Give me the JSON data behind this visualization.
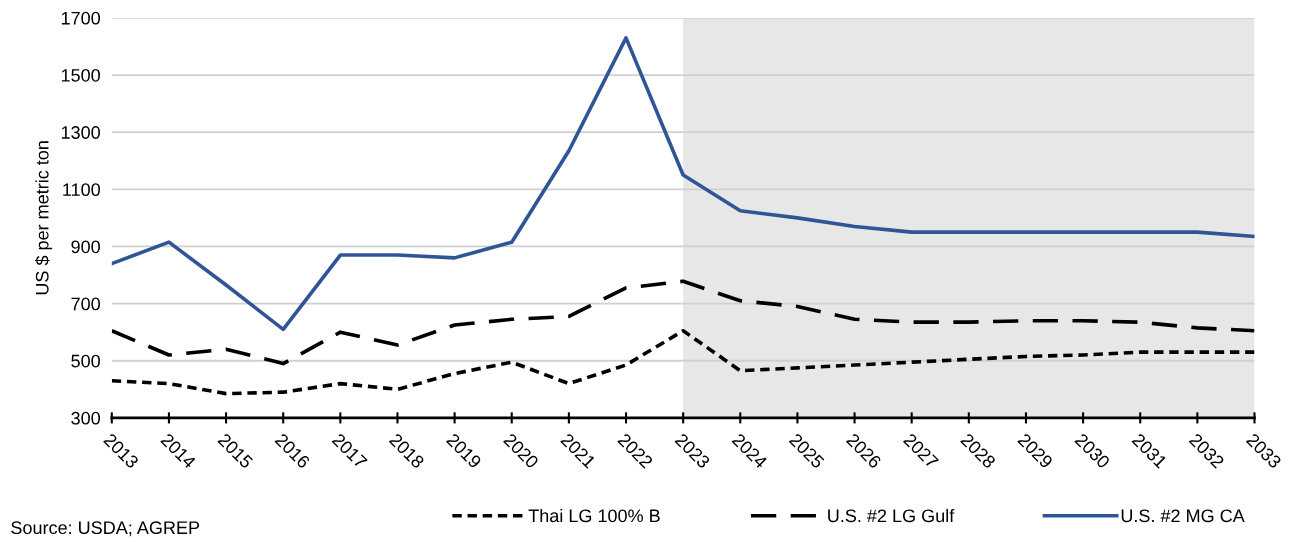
{
  "chart_data": {
    "type": "line",
    "categories": [
      "2013",
      "2014",
      "2015",
      "2016",
      "2017",
      "2018",
      "2019",
      "2020",
      "2021",
      "2022",
      "2023",
      "2024",
      "2025",
      "2026",
      "2027",
      "2028",
      "2029",
      "2030",
      "2031",
      "2032",
      "2033"
    ],
    "series": [
      {
        "name": "Thai LG 100% B",
        "color": "#000000",
        "line_style": "dotted",
        "values": [
          430,
          420,
          385,
          390,
          420,
          400,
          455,
          495,
          420,
          485,
          605,
          465,
          475,
          485,
          495,
          505,
          515,
          520,
          530,
          530,
          530
        ]
      },
      {
        "name": "U.S. #2 LG Gulf",
        "color": "#000000",
        "line_style": "dashed",
        "values": [
          605,
          520,
          540,
          490,
          600,
          555,
          625,
          645,
          655,
          755,
          778,
          710,
          690,
          645,
          635,
          635,
          640,
          640,
          635,
          615,
          605
        ]
      },
      {
        "name": "U.S. #2 MG CA",
        "color": "#2f5597",
        "line_style": "solid",
        "values": [
          840,
          915,
          765,
          610,
          870,
          870,
          860,
          915,
          1235,
          1630,
          1150,
          1025,
          1000,
          970,
          950,
          950,
          950,
          950,
          950,
          950,
          935
        ]
      }
    ],
    "ylabel": "US $ per metric ton",
    "ylim": [
      300,
      1700
    ],
    "yticks": [
      300,
      500,
      700,
      900,
      1100,
      1300,
      1500,
      1700
    ],
    "grid": "y",
    "legend": "bottom",
    "marker": "none",
    "bands": [
      {
        "axis": "x",
        "from": "2023",
        "to": "2033",
        "color": "#e7e7e7"
      }
    ],
    "annotations": [
      "Source: USDA; AGREP"
    ]
  }
}
